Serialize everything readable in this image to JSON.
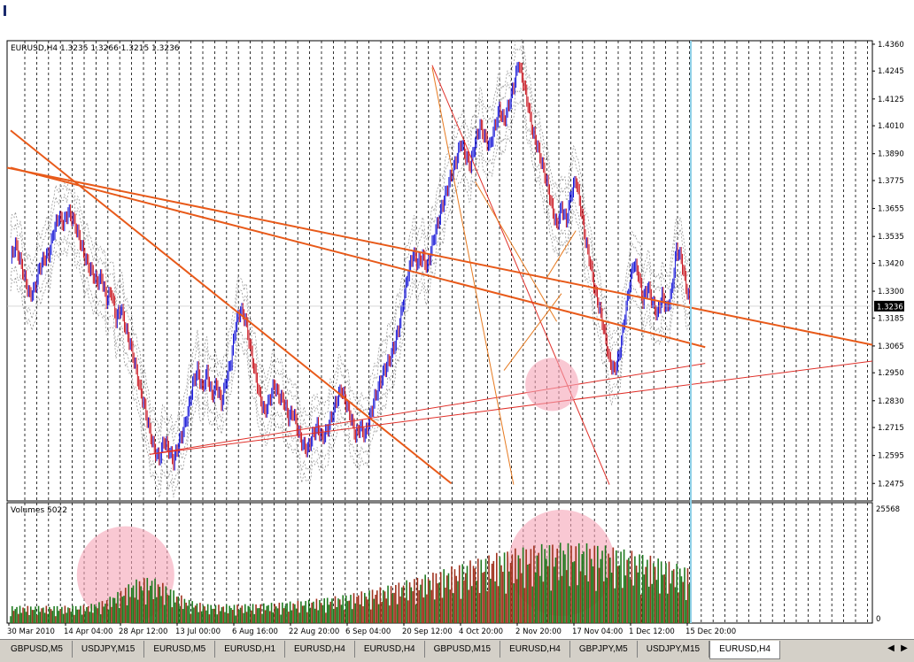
{
  "chart_data": [
    {
      "type": "candlestick",
      "title": "EURUSD,H4  1.3235 1.3266 1.3215 1.3236",
      "y_ticks": [
        1.436,
        1.4245,
        1.4125,
        1.401,
        1.389,
        1.3775,
        1.3655,
        1.3535,
        1.342,
        1.33,
        1.3185,
        1.3065,
        1.295,
        1.283,
        1.2715,
        1.2595,
        1.2475
      ],
      "ylim": [
        1.24,
        1.4375
      ],
      "current_price": "1.3236",
      "x_ticks": [
        "30 Mar 2010",
        "14 Apr 04:00",
        "28 Apr 12:00",
        "13 Jul 00:00",
        "6 Aug 16:00",
        "22 Aug 20:00",
        "6 Sep 04:00",
        "20 Sep 12:00",
        "4 Oct 20:00",
        "2 Nov 20:00",
        "17 Nov 04:00",
        "1 Dec 12:00",
        "15 Dec 20:00"
      ],
      "price_path": [
        [
          0,
          1.344
        ],
        [
          2,
          1.35
        ],
        [
          4,
          1.343
        ],
        [
          6,
          1.335
        ],
        [
          7,
          1.328
        ],
        [
          8,
          1.331
        ],
        [
          9,
          1.34
        ],
        [
          10,
          1.344
        ],
        [
          11,
          1.346
        ],
        [
          12,
          1.356
        ],
        [
          13,
          1.362
        ],
        [
          14,
          1.359
        ],
        [
          15,
          1.364
        ],
        [
          16,
          1.361
        ],
        [
          17,
          1.355
        ],
        [
          18,
          1.348
        ],
        [
          19,
          1.342
        ],
        [
          20,
          1.338
        ],
        [
          21,
          1.334
        ],
        [
          22,
          1.336
        ],
        [
          23,
          1.326
        ],
        [
          24,
          1.33
        ],
        [
          25,
          1.318
        ],
        [
          26,
          1.323
        ],
        [
          27,
          1.314
        ],
        [
          28,
          1.307
        ],
        [
          29,
          1.298
        ],
        [
          30,
          1.288
        ],
        [
          31,
          1.28
        ],
        [
          32,
          1.27
        ],
        [
          33,
          1.262
        ],
        [
          34,
          1.258
        ],
        [
          35,
          1.266
        ],
        [
          36,
          1.262
        ],
        [
          37,
          1.257
        ],
        [
          38,
          1.264
        ],
        [
          39,
          1.27
        ],
        [
          40,
          1.278
        ],
        [
          41,
          1.29
        ],
        [
          42,
          1.296
        ],
        [
          43,
          1.288
        ],
        [
          44,
          1.295
        ],
        [
          45,
          1.285
        ],
        [
          46,
          1.29
        ],
        [
          47,
          1.282
        ],
        [
          48,
          1.292
        ],
        [
          49,
          1.3
        ],
        [
          50,
          1.316
        ],
        [
          51,
          1.322
        ],
        [
          52,
          1.318
        ],
        [
          53,
          1.306
        ],
        [
          54,
          1.295
        ],
        [
          55,
          1.285
        ],
        [
          56,
          1.278
        ],
        [
          57,
          1.283
        ],
        [
          58,
          1.29
        ],
        [
          59,
          1.285
        ],
        [
          60,
          1.283
        ],
        [
          61,
          1.276
        ],
        [
          62,
          1.278
        ],
        [
          63,
          1.27
        ],
        [
          64,
          1.264
        ],
        [
          65,
          1.262
        ],
        [
          66,
          1.268
        ],
        [
          67,
          1.272
        ],
        [
          68,
          1.267
        ],
        [
          69,
          1.27
        ],
        [
          70,
          1.276
        ],
        [
          71,
          1.283
        ],
        [
          72,
          1.288
        ],
        [
          73,
          1.282
        ],
        [
          74,
          1.276
        ],
        [
          75,
          1.268
        ],
        [
          76,
          1.272
        ],
        [
          77,
          1.268
        ],
        [
          78,
          1.276
        ],
        [
          79,
          1.284
        ],
        [
          80,
          1.29
        ],
        [
          81,
          1.296
        ],
        [
          82,
          1.3
        ],
        [
          83,
          1.306
        ],
        [
          84,
          1.314
        ],
        [
          85,
          1.326
        ],
        [
          86,
          1.338
        ],
        [
          87,
          1.346
        ],
        [
          88,
          1.342
        ],
        [
          89,
          1.345
        ],
        [
          90,
          1.34
        ],
        [
          91,
          1.35
        ],
        [
          92,
          1.358
        ],
        [
          93,
          1.366
        ],
        [
          94,
          1.373
        ],
        [
          95,
          1.38
        ],
        [
          96,
          1.386
        ],
        [
          97,
          1.394
        ],
        [
          98,
          1.388
        ],
        [
          99,
          1.384
        ],
        [
          100,
          1.394
        ],
        [
          101,
          1.401
        ],
        [
          102,
          1.396
        ],
        [
          103,
          1.392
        ],
        [
          104,
          1.4
        ],
        [
          105,
          1.408
        ],
        [
          106,
          1.403
        ],
        [
          107,
          1.41
        ],
        [
          108,
          1.418
        ],
        [
          109,
          1.428
        ],
        [
          110,
          1.42
        ],
        [
          111,
          1.41
        ],
        [
          112,
          1.398
        ],
        [
          113,
          1.392
        ],
        [
          114,
          1.384
        ],
        [
          115,
          1.376
        ],
        [
          116,
          1.366
        ],
        [
          117,
          1.358
        ],
        [
          118,
          1.366
        ],
        [
          119,
          1.36
        ],
        [
          120,
          1.372
        ],
        [
          121,
          1.378
        ],
        [
          122,
          1.366
        ],
        [
          123,
          1.352
        ],
        [
          124,
          1.342
        ],
        [
          125,
          1.33
        ],
        [
          126,
          1.322
        ],
        [
          127,
          1.312
        ],
        [
          128,
          1.3
        ],
        [
          129,
          1.296
        ],
        [
          130,
          1.302
        ],
        [
          131,
          1.316
        ],
        [
          132,
          1.33
        ],
        [
          133,
          1.342
        ],
        [
          134,
          1.338
        ],
        [
          135,
          1.326
        ],
        [
          136,
          1.332
        ],
        [
          137,
          1.325
        ],
        [
          138,
          1.32
        ],
        [
          139,
          1.328
        ],
        [
          140,
          1.322
        ],
        [
          141,
          1.33
        ],
        [
          142,
          1.348
        ],
        [
          143,
          1.344
        ],
        [
          144,
          1.332
        ],
        [
          145,
          1.3236
        ]
      ],
      "volume_indicator": {
        "label": "Volumes 5022",
        "y_ticks": [
          "25568",
          "0"
        ],
        "peak_at": 126,
        "bar_count": 146
      },
      "trendlines": [
        {
          "from": [
            1.399,
            0
          ],
          "to": [
            1.2475,
            92
          ],
          "color": "#e85a1a",
          "width": 2
        },
        {
          "from": [
            1.383,
            0
          ],
          "to": [
            1.306,
            145
          ],
          "color": "#e85a1a",
          "width": 2
        },
        {
          "from": [
            1.26,
            29
          ],
          "to": [
            1.299,
            145
          ],
          "color": "#e0302a",
          "width": 1
        },
        {
          "from": [
            1.427,
            88
          ],
          "to": [
            1.247,
            125
          ],
          "color": "#e0302a",
          "width": 1
        },
        {
          "from": [
            1.426,
            88
          ],
          "to": [
            1.247,
            105
          ],
          "color": "#e67a20",
          "width": 1
        },
        {
          "from": [
            1.377,
            97
          ],
          "to": [
            1.317,
            114
          ],
          "color": "#e67a20",
          "width": 1
        },
        {
          "from": [
            1.296,
            103
          ],
          "to": [
            1.329,
            115
          ],
          "color": "#e67a20",
          "width": 1
        },
        {
          "from": [
            1.336,
            112
          ],
          "to": [
            1.356,
            118
          ],
          "color": "#e67a20",
          "width": 1
        }
      ],
      "highlight_circles": [
        {
          "x": 113,
          "y": 1.29,
          "r": 30
        },
        {
          "panel": "volume",
          "x": 115,
          "ratio": 0.5,
          "r": 60
        },
        {
          "panel": "volume",
          "x": 24,
          "ratio": 0.6,
          "r": 55
        }
      ]
    }
  ],
  "tabs": [
    "GBPUSD,M5",
    "USDJPY,M15",
    "EURUSD,M5",
    "EURUSD,H1",
    "EURUSD,H4",
    "EURUSD,H4",
    "GBPUSD,M15",
    "EURUSD,H4",
    "GBPJPY,M5",
    "USDJPY,M15",
    "EURUSD,H4"
  ],
  "active_tab_index": 10
}
